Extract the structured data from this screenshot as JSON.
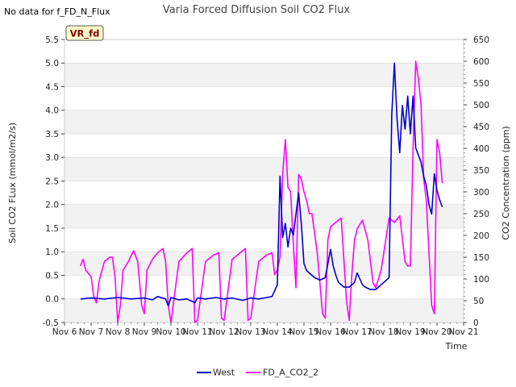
{
  "note": "No data for f_FD_N_Flux",
  "badge": "VR_fd",
  "chart_data": {
    "type": "line",
    "title": "Varia Forced Diffusion Soil CO2 Flux",
    "xlabel": "Time",
    "ylabel": "Soil CO2 FLux (mmol/m2/s)",
    "y2label": "CO2 Concentration (ppm)",
    "xlim": [
      6,
      21
    ],
    "ylim": [
      -0.5,
      5.5
    ],
    "y2lim": [
      0,
      650
    ],
    "xticks": [
      6,
      7,
      8,
      9,
      10,
      11,
      12,
      13,
      14,
      15,
      16,
      17,
      18,
      19,
      20,
      21
    ],
    "xtick_labels": [
      "Nov 6",
      "Nov 7",
      "Nov 8",
      "Nov 9",
      "Nov 10",
      "Nov 11",
      "Nov 12",
      "Nov 13",
      "Nov 14",
      "Nov 15",
      "Nov 16",
      "Nov 17",
      "Nov 18",
      "Nov 19",
      "Nov 20",
      "Nov 21"
    ],
    "yticks": [
      -0.5,
      0.0,
      0.5,
      1.0,
      1.5,
      2.0,
      2.5,
      3.0,
      3.5,
      4.0,
      4.5,
      5.0,
      5.5
    ],
    "ytick_labels": [
      "-0.5",
      "0.0",
      "0.5",
      "1.0",
      "1.5",
      "2.0",
      "2.5",
      "3.0",
      "3.5",
      "4.0",
      "4.5",
      "5.0",
      "5.5"
    ],
    "y2ticks": [
      0,
      50,
      100,
      150,
      200,
      250,
      300,
      350,
      400,
      450,
      500,
      550,
      600,
      650
    ],
    "y2tick_labels": [
      "0",
      "50",
      "100",
      "150",
      "200",
      "250",
      "300",
      "350",
      "400",
      "450",
      "500",
      "550",
      "600",
      "650"
    ],
    "legend_position": "bottom-center",
    "series": [
      {
        "name": "West",
        "axis": "left",
        "color": "#0000cc",
        "x": [
          6.6,
          7.0,
          7.5,
          8.0,
          8.5,
          9.0,
          9.3,
          9.5,
          9.8,
          9.9,
          10.0,
          10.3,
          10.6,
          10.9,
          11.0,
          11.3,
          11.7,
          12.0,
          12.3,
          12.7,
          13.0,
          13.3,
          13.6,
          13.8,
          14.0,
          14.1,
          14.2,
          14.3,
          14.4,
          14.5,
          14.6,
          14.7,
          14.8,
          14.9,
          15.0,
          15.1,
          15.2,
          15.4,
          15.6,
          15.8,
          16.0,
          16.1,
          16.2,
          16.3,
          16.5,
          16.7,
          16.9,
          17.0,
          17.2,
          17.3,
          17.5,
          17.7,
          17.9,
          18.1,
          18.2,
          18.3,
          18.4,
          18.5,
          18.6,
          18.7,
          18.8,
          18.9,
          19.0,
          19.1,
          19.2,
          19.3,
          19.4,
          19.5,
          19.6,
          19.7,
          19.8,
          19.9,
          20.0,
          20.1,
          20.2
        ],
        "y": [
          0.0,
          0.02,
          0.0,
          0.03,
          0.0,
          0.02,
          -0.02,
          0.05,
          0.0,
          -0.15,
          0.03,
          -0.02,
          0.0,
          -0.08,
          0.02,
          0.0,
          0.03,
          0.0,
          0.02,
          -0.03,
          0.02,
          0.0,
          0.03,
          0.05,
          0.3,
          2.6,
          1.3,
          1.6,
          1.1,
          1.5,
          1.35,
          1.8,
          2.25,
          1.6,
          0.75,
          0.6,
          0.55,
          0.45,
          0.4,
          0.45,
          1.05,
          0.7,
          0.5,
          0.35,
          0.25,
          0.25,
          0.35,
          0.55,
          0.3,
          0.25,
          0.2,
          0.2,
          0.3,
          0.4,
          0.45,
          3.9,
          5.0,
          3.8,
          3.1,
          4.1,
          3.6,
          4.3,
          3.5,
          4.3,
          3.2,
          3.05,
          2.9,
          2.6,
          2.4,
          2.0,
          1.8,
          2.65,
          2.3,
          2.1,
          1.95
        ]
      },
      {
        "name": "FD_A_CO2_2",
        "axis": "right",
        "color": "#ff00ff",
        "x": [
          6.6,
          6.7,
          6.8,
          7.0,
          7.1,
          7.2,
          7.3,
          7.5,
          7.7,
          7.8,
          7.9,
          8.0,
          8.1,
          8.2,
          8.4,
          8.6,
          8.75,
          8.9,
          9.0,
          9.1,
          9.3,
          9.5,
          9.7,
          9.8,
          9.9,
          10.0,
          10.3,
          10.6,
          10.8,
          10.9,
          11.0,
          11.3,
          11.6,
          11.8,
          11.9,
          12.0,
          12.3,
          12.6,
          12.8,
          12.9,
          13.0,
          13.3,
          13.6,
          13.8,
          13.9,
          14.0,
          14.1,
          14.2,
          14.3,
          14.4,
          14.5,
          14.6,
          14.7,
          14.8,
          14.9,
          15.0,
          15.1,
          15.2,
          15.3,
          15.5,
          15.7,
          15.8,
          15.9,
          16.0,
          16.1,
          16.2,
          16.4,
          16.6,
          16.7,
          16.8,
          16.9,
          17.0,
          17.1,
          17.2,
          17.4,
          17.6,
          17.7,
          17.9,
          18.0,
          18.2,
          18.4,
          18.6,
          18.8,
          18.9,
          19.0,
          19.1,
          19.2,
          19.3,
          19.4,
          19.5,
          19.6,
          19.7,
          19.8,
          19.9,
          20.0,
          20.1,
          20.2
        ],
        "y": [
          130,
          145,
          120,
          105,
          60,
          45,
          95,
          140,
          150,
          150,
          105,
          0,
          40,
          120,
          140,
          165,
          140,
          40,
          20,
          120,
          145,
          160,
          170,
          140,
          40,
          0,
          140,
          160,
          170,
          0,
          5,
          140,
          155,
          160,
          10,
          5,
          145,
          160,
          170,
          5,
          10,
          140,
          155,
          160,
          110,
          120,
          150,
          340,
          420,
          310,
          300,
          180,
          80,
          340,
          330,
          300,
          280,
          250,
          250,
          160,
          20,
          10,
          190,
          220,
          225,
          230,
          240,
          50,
          5,
          110,
          190,
          215,
          225,
          235,
          190,
          90,
          80,
          120,
          160,
          240,
          230,
          245,
          140,
          130,
          130,
          400,
          600,
          560,
          500,
          330,
          280,
          160,
          40,
          20,
          420,
          390,
          320
        ]
      }
    ]
  }
}
